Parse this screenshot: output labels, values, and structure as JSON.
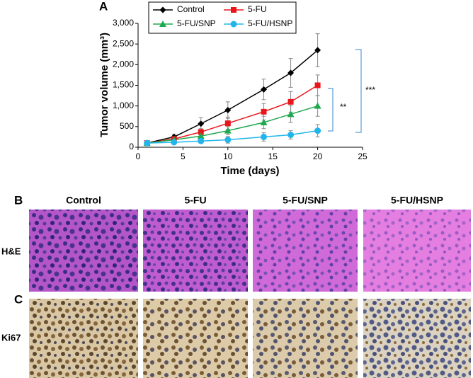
{
  "chart_data": {
    "type": "line",
    "panel_label": "A",
    "x_label": "Time (days)",
    "y_label": "Tumor volume (mm³)",
    "x": [
      1,
      4,
      7,
      10,
      14,
      17,
      20
    ],
    "series": [
      {
        "name": "Control",
        "color": "#000000",
        "marker": "diamond",
        "values": [
          100,
          250,
          570,
          900,
          1400,
          1800,
          2350
        ],
        "errors": [
          30,
          70,
          150,
          200,
          250,
          350,
          400
        ]
      },
      {
        "name": "5-FU",
        "color": "#e8161b",
        "marker": "square",
        "values": [
          100,
          200,
          370,
          580,
          860,
          1100,
          1500
        ],
        "errors": [
          30,
          50,
          80,
          150,
          200,
          250,
          250
        ]
      },
      {
        "name": "5-FU/SNP",
        "color": "#1fa84f",
        "marker": "triangle",
        "values": [
          100,
          180,
          270,
          400,
          600,
          800,
          1000
        ],
        "errors": [
          30,
          40,
          60,
          100,
          150,
          200,
          250
        ]
      },
      {
        "name": "5-FU/HSNP",
        "color": "#22b5ec",
        "marker": "circle",
        "values": [
          100,
          120,
          150,
          180,
          250,
          300,
          400
        ],
        "errors": [
          30,
          30,
          40,
          80,
          100,
          100,
          150
        ]
      }
    ],
    "xlim": [
      0,
      25
    ],
    "xticks": [
      0,
      5,
      10,
      15,
      20,
      25
    ],
    "ylim": [
      0,
      3000
    ],
    "yticks": [
      0,
      500,
      {
        "value": 1000,
        "label": "1,000"
      },
      {
        "value": 1500,
        "label": "1,500"
      },
      {
        "value": 2000,
        "label": "2,000"
      },
      {
        "value": 2500,
        "label": "2,500"
      },
      {
        "value": 3000,
        "label": "3,000"
      }
    ],
    "annotations": [
      "**",
      "***"
    ]
  },
  "histology": {
    "panel_labels": [
      "B",
      "C"
    ],
    "columns": [
      "Control",
      "5-FU",
      "5-FU/SNP",
      "5-FU/HSNP"
    ],
    "rows": [
      "H&E",
      "Ki67"
    ]
  }
}
